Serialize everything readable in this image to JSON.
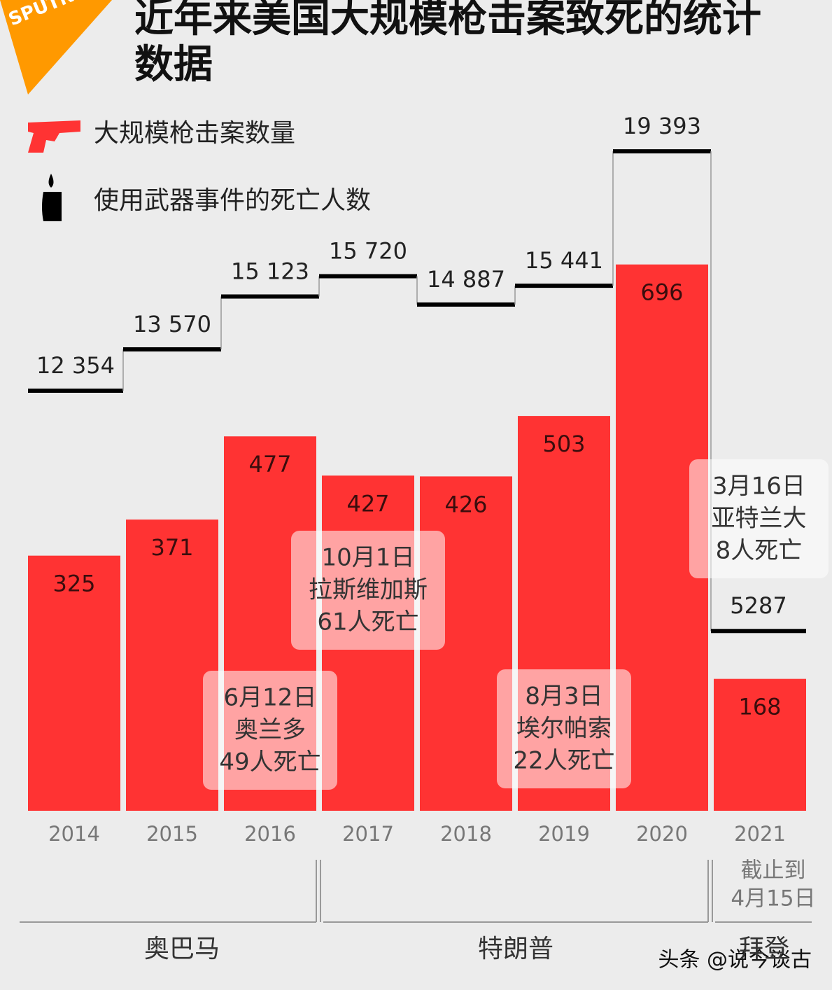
{
  "logo": "SPUTNIK",
  "chart_data": {
    "type": "bar",
    "title": "近年来美国大规模枪击案致死的统计数据",
    "categories": [
      "2014",
      "2015",
      "2016",
      "2017",
      "2018",
      "2019",
      "2020",
      "2021"
    ],
    "series": [
      {
        "name": "大规模枪击案数量",
        "color": "#ff3333",
        "values": [
          325,
          371,
          477,
          427,
          426,
          503,
          696,
          168
        ]
      },
      {
        "name": "使用武器事件的死亡人数",
        "color": "#000000",
        "axis": "y2",
        "values": [
          12354,
          13570,
          15123,
          15720,
          14887,
          15441,
          19393,
          5287
        ],
        "value_labels": [
          "12 354",
          "13 570",
          "15 123",
          "15 720",
          "14 887",
          "15 441",
          "19 393",
          "5287"
        ]
      }
    ],
    "ylim": [
      0,
      892
    ],
    "y2lim": [
      0,
      20590
    ],
    "annotations": [
      [
        "6月12日",
        "奥兰多",
        "49人死亡"
      ],
      [
        "10月1日",
        "拉斯维加斯",
        "61人死亡"
      ],
      [
        "8月3日",
        "埃尔帕索",
        "22人死亡"
      ],
      [
        "3月16日",
        "亚特兰大",
        "8人死亡"
      ]
    ],
    "category_note": [
      "截止到",
      "4月15日"
    ],
    "periods": [
      "奥巴马",
      "特朗普",
      "拜登"
    ]
  },
  "watermark": "头条 @说今谈古"
}
